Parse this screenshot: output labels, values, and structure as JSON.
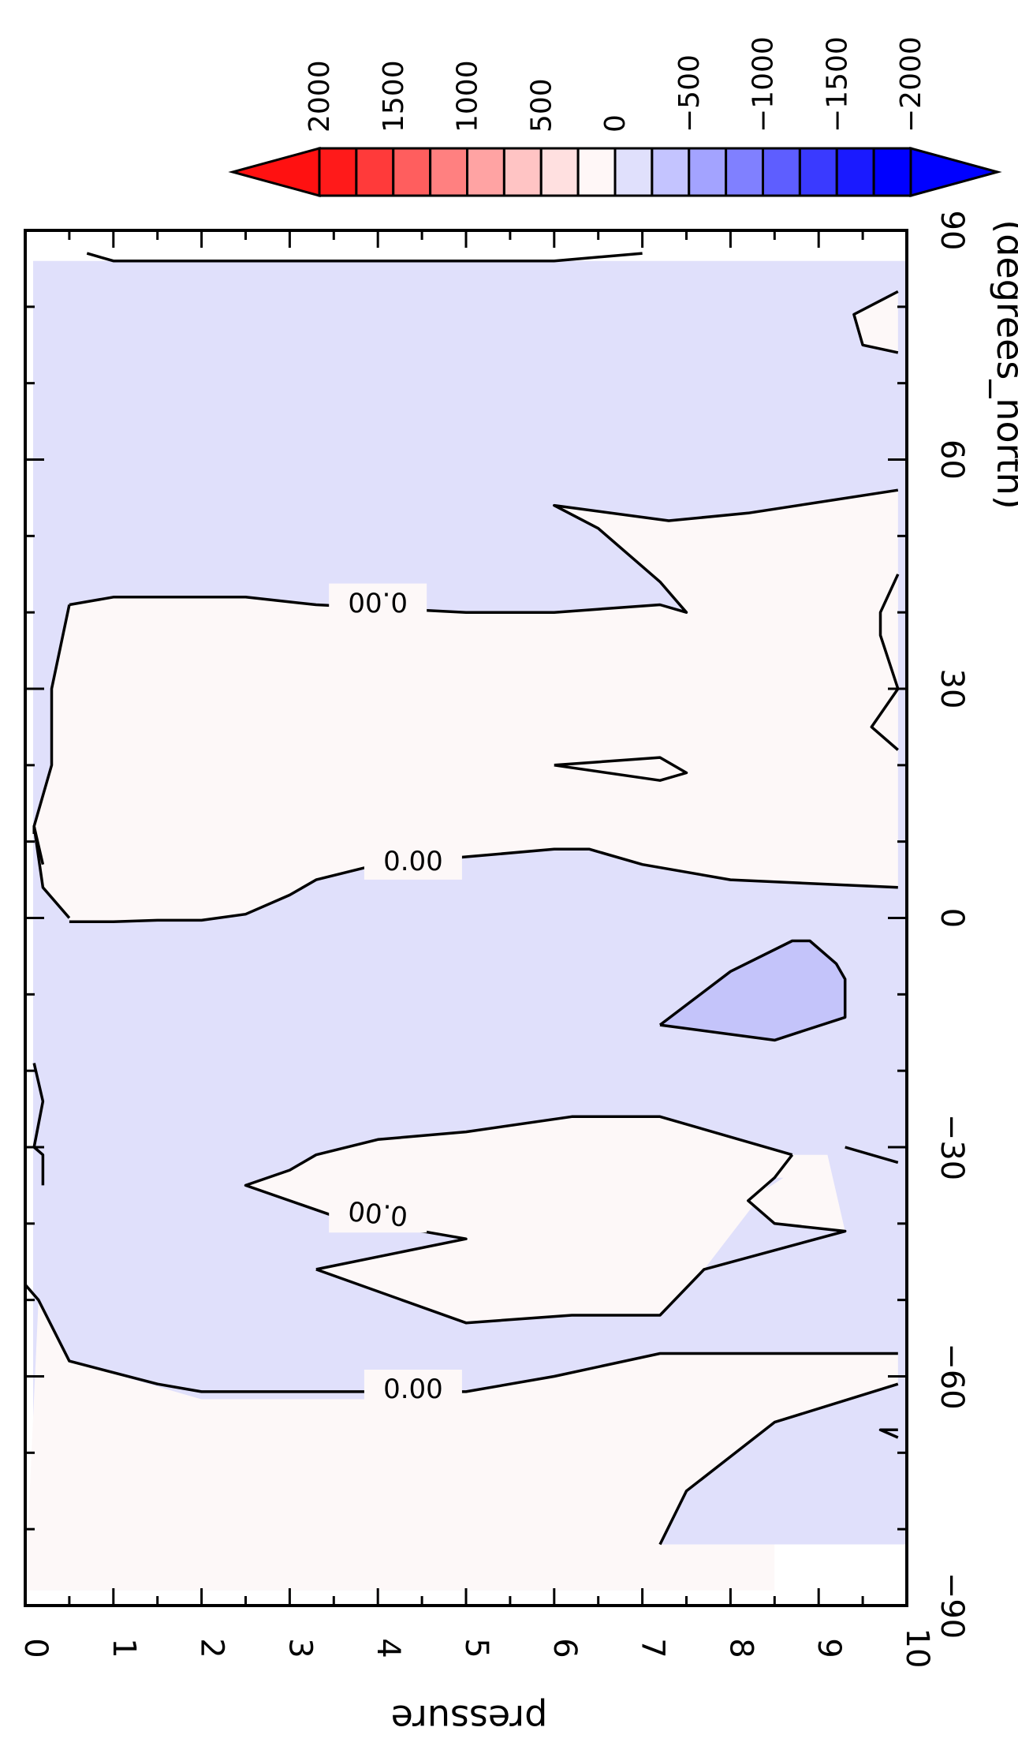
{
  "chart_data": {
    "type": "contour",
    "variable_note": "pressure-latitude cross section, filled contours with colorbar",
    "xlabel": "pressure",
    "ylabel": "(degrees_north)",
    "x_ticks": [
      "0",
      "1",
      "2",
      "3",
      "4",
      "5",
      "6",
      "7",
      "8",
      "9",
      "10"
    ],
    "y_ticks": [
      "−90",
      "−60",
      "−30",
      "0",
      "30",
      "60",
      "90"
    ],
    "xlim": [
      0,
      10
    ],
    "ylim": [
      -90,
      90
    ],
    "grid": false,
    "colorbar": {
      "placement": "top-right",
      "labels": [
        "2000",
        "1500",
        "1000",
        "500",
        "0",
        "−500",
        "−1000",
        "−1500",
        "−2000"
      ],
      "levels": [
        2000,
        1750,
        1500,
        1250,
        1000,
        750,
        500,
        250,
        0,
        -250,
        -500,
        -750,
        -1000,
        -1250,
        -1500,
        -1750,
        -2000
      ],
      "colors": [
        "#ff1a1a",
        "#ff3a3a",
        "#ff5e5e",
        "#ff8080",
        "#ffa3a3",
        "#ffc4c4",
        "#ffe0e0",
        "#fff7f7",
        "#e0e0fc",
        "#c4c4ff",
        "#a3a3ff",
        "#8080ff",
        "#5e5eff",
        "#3a3aff",
        "#1a1aff",
        "#0000ff"
      ],
      "under_color": "#ff1111",
      "over_color": "#0000ff"
    },
    "fill_colors": {
      "positive_small": "#fdf8f8",
      "negative_small": "#e0e0fb",
      "negative_medium": "#c4c4fa",
      "missing": "#ffffff"
    },
    "contour_labels": [
      "0.00",
      "0.00",
      "0.00",
      "0.00"
    ],
    "regions": [
      {
        "level": "0 to 250",
        "points": [
          [
            0,
            -88
          ],
          [
            0.15,
            -50
          ],
          [
            0.5,
            -58
          ],
          [
            2,
            -63
          ],
          [
            4,
            -63
          ],
          [
            5,
            -62
          ],
          [
            6,
            -60
          ],
          [
            7.2,
            -57
          ],
          [
            9.9,
            -57
          ],
          [
            9.9,
            -61
          ],
          [
            8.5,
            -66
          ],
          [
            7.5,
            -75
          ],
          [
            7.2,
            -82
          ],
          [
            7.2,
            -88
          ]
        ]
      },
      {
        "level": "0 to 250",
        "points": [
          [
            7.2,
            -82
          ],
          [
            8.5,
            -82
          ],
          [
            8.5,
            -88
          ],
          [
            7.2,
            -88
          ]
        ]
      },
      {
        "level": "0 to 250",
        "points": [
          [
            2.5,
            -35
          ],
          [
            3,
            -33
          ],
          [
            3.3,
            -31
          ],
          [
            4,
            -29
          ],
          [
            5,
            -28
          ],
          [
            6.2,
            -26
          ],
          [
            7.2,
            -26
          ],
          [
            8.7,
            -31
          ],
          [
            9.1,
            -31
          ],
          [
            9.3,
            -41
          ],
          [
            8.5,
            -40
          ],
          [
            8.2,
            -37
          ],
          [
            8.6,
            -34
          ],
          [
            8.5,
            -34
          ],
          [
            7.7,
            -46
          ],
          [
            7.2,
            -52
          ],
          [
            6.2,
            -52
          ],
          [
            5,
            -53
          ],
          [
            3.3,
            -46
          ],
          [
            5,
            -42
          ],
          [
            3.5,
            -39
          ],
          [
            2.5,
            -35
          ]
        ]
      },
      {
        "level": "0 to 250",
        "points": [
          [
            0.5,
            -0.5
          ],
          [
            1,
            -0.5
          ],
          [
            1.5,
            -0.3
          ],
          [
            2,
            -0.3
          ],
          [
            2.5,
            0.5
          ],
          [
            3,
            3
          ],
          [
            3.3,
            5
          ],
          [
            4,
            7
          ],
          [
            5,
            8
          ],
          [
            6,
            9
          ],
          [
            6.4,
            9
          ],
          [
            7,
            7
          ],
          [
            8,
            5
          ],
          [
            9.9,
            4
          ],
          [
            9.9,
            -1
          ],
          [
            9.9,
            56
          ],
          [
            8.2,
            53
          ],
          [
            7.3,
            52
          ],
          [
            6,
            54
          ],
          [
            6.5,
            51
          ],
          [
            7.2,
            44
          ],
          [
            7.5,
            40
          ],
          [
            7.2,
            41
          ],
          [
            6,
            40
          ],
          [
            5,
            40
          ],
          [
            3.3,
            41
          ],
          [
            2.5,
            42
          ],
          [
            2,
            42
          ],
          [
            1,
            42
          ],
          [
            0.5,
            41
          ],
          [
            0.3,
            30
          ],
          [
            0.3,
            20
          ],
          [
            0.1,
            12
          ],
          [
            0.2,
            4
          ],
          [
            0.5,
            0
          ]
        ]
      },
      {
        "level": "0 to 250",
        "points": [
          [
            6,
            20
          ],
          [
            7.2,
            21
          ],
          [
            7.5,
            19
          ],
          [
            7.2,
            18
          ]
        ]
      },
      {
        "level": "0 to 250",
        "points": [
          [
            9.9,
            22
          ],
          [
            9.6,
            25
          ],
          [
            9.9,
            30
          ],
          [
            9.7,
            37
          ],
          [
            9.7,
            40
          ],
          [
            9.9,
            45
          ]
        ]
      },
      {
        "level": "0 to 250",
        "points": [
          [
            9.9,
            74
          ],
          [
            9.5,
            75
          ],
          [
            9.4,
            79
          ],
          [
            9.9,
            82
          ]
        ]
      },
      {
        "level": "-250 to -500",
        "points": [
          [
            7.2,
            -14
          ],
          [
            8,
            -7
          ],
          [
            8.7,
            -3
          ],
          [
            8.9,
            -3
          ],
          [
            9.2,
            -6
          ],
          [
            9.3,
            -8
          ],
          [
            9.3,
            -13
          ],
          [
            8.5,
            -16
          ],
          [
            7.2,
            -14
          ]
        ]
      }
    ],
    "contours": [
      {
        "label": "0.00",
        "points": [
          [
            0,
            -48
          ],
          [
            0.15,
            -50
          ],
          [
            0.5,
            -58
          ],
          [
            1.5,
            -61
          ],
          [
            2,
            -62
          ],
          [
            4,
            -62
          ],
          [
            5,
            -62
          ],
          [
            6,
            -60
          ],
          [
            7.2,
            -57
          ],
          [
            9.9,
            -57
          ]
        ]
      },
      {
        "label": "0.00",
        "points": [
          [
            0.5,
            -0.5
          ],
          [
            1,
            -0.5
          ],
          [
            1.5,
            -0.3
          ],
          [
            2,
            -0.3
          ],
          [
            2.5,
            0.5
          ],
          [
            3,
            3
          ],
          [
            3.3,
            5
          ],
          [
            4,
            7
          ],
          [
            5,
            8
          ],
          [
            6,
            9
          ],
          [
            6.4,
            9
          ],
          [
            7,
            7
          ],
          [
            8,
            5
          ],
          [
            9.9,
            4
          ]
        ]
      },
      {
        "label": "0.00",
        "points": [
          [
            0.5,
            41
          ],
          [
            1,
            42
          ],
          [
            2,
            42
          ],
          [
            2.5,
            42
          ],
          [
            3.3,
            41
          ],
          [
            5,
            40
          ],
          [
            6,
            40
          ],
          [
            7.2,
            41
          ],
          [
            7.5,
            40
          ],
          [
            7.2,
            44
          ],
          [
            6.5,
            51
          ],
          [
            6,
            54
          ],
          [
            7.3,
            52
          ],
          [
            8.2,
            53
          ],
          [
            9.9,
            56
          ]
        ]
      },
      {
        "label": "0.00",
        "points": [
          [
            3.3,
            -46
          ],
          [
            5,
            -42
          ],
          [
            3.5,
            -39
          ],
          [
            2.5,
            -35
          ],
          [
            3,
            -33
          ],
          [
            3.3,
            -31
          ],
          [
            4,
            -29
          ],
          [
            5,
            -28
          ],
          [
            6.2,
            -26
          ],
          [
            7.2,
            -26
          ],
          [
            8.7,
            -31
          ]
        ]
      },
      {
        "label": "",
        "points": [
          [
            0.5,
            41
          ],
          [
            0.3,
            30
          ],
          [
            0.3,
            20
          ],
          [
            0.1,
            12
          ],
          [
            0.2,
            4
          ],
          [
            0.5,
            0
          ]
        ]
      },
      {
        "label": "",
        "points": [
          [
            7.2,
            -82
          ],
          [
            7.5,
            -75
          ],
          [
            8.5,
            -66
          ],
          [
            9.9,
            -61
          ]
        ]
      },
      {
        "label": "",
        "points": [
          [
            9.9,
            -68
          ],
          [
            9.7,
            -67
          ],
          [
            9.9,
            -67
          ]
        ]
      },
      {
        "label": "",
        "points": [
          [
            8.7,
            -31
          ],
          [
            8.5,
            -34
          ],
          [
            8.2,
            -37
          ],
          [
            8.5,
            -40
          ],
          [
            9.3,
            -41
          ],
          [
            7.7,
            -46
          ],
          [
            7.2,
            -52
          ],
          [
            6.2,
            -52
          ],
          [
            5,
            -53
          ],
          [
            3.3,
            -46
          ]
        ]
      },
      {
        "label": "",
        "points": [
          [
            9.3,
            -30
          ],
          [
            9.9,
            -32
          ]
        ]
      },
      {
        "label": "",
        "points": [
          [
            7.2,
            -14
          ],
          [
            8,
            -7
          ],
          [
            8.7,
            -3
          ],
          [
            8.9,
            -3
          ],
          [
            9.2,
            -6
          ],
          [
            9.3,
            -8
          ],
          [
            9.3,
            -13
          ],
          [
            8.5,
            -16
          ],
          [
            7.2,
            -14
          ]
        ]
      },
      {
        "label": "",
        "points": [
          [
            6,
            20
          ],
          [
            7.2,
            21
          ],
          [
            7.5,
            19
          ],
          [
            7.2,
            18
          ],
          [
            6,
            20
          ]
        ]
      },
      {
        "label": "",
        "points": [
          [
            9.9,
            22
          ],
          [
            9.6,
            25
          ],
          [
            9.9,
            30
          ],
          [
            9.7,
            37
          ],
          [
            9.7,
            40
          ],
          [
            9.9,
            45
          ]
        ]
      },
      {
        "label": "",
        "points": [
          [
            9.9,
            74
          ],
          [
            9.5,
            75
          ],
          [
            9.4,
            79
          ],
          [
            9.9,
            82
          ]
        ]
      },
      {
        "label": "",
        "points": [
          [
            0.1,
            11
          ],
          [
            0.1,
            12
          ],
          [
            0.2,
            7
          ]
        ]
      },
      {
        "label": "",
        "points": [
          [
            0.1,
            -19
          ],
          [
            0.2,
            -24
          ],
          [
            0.1,
            -30
          ],
          [
            0.2,
            -31
          ],
          [
            0.2,
            -35
          ]
        ]
      },
      {
        "label": "",
        "points": [
          [
            0.7,
            87
          ],
          [
            1,
            86
          ],
          [
            2,
            86
          ],
          [
            4,
            86
          ],
          [
            6,
            86
          ],
          [
            7,
            87
          ]
        ]
      }
    ]
  }
}
